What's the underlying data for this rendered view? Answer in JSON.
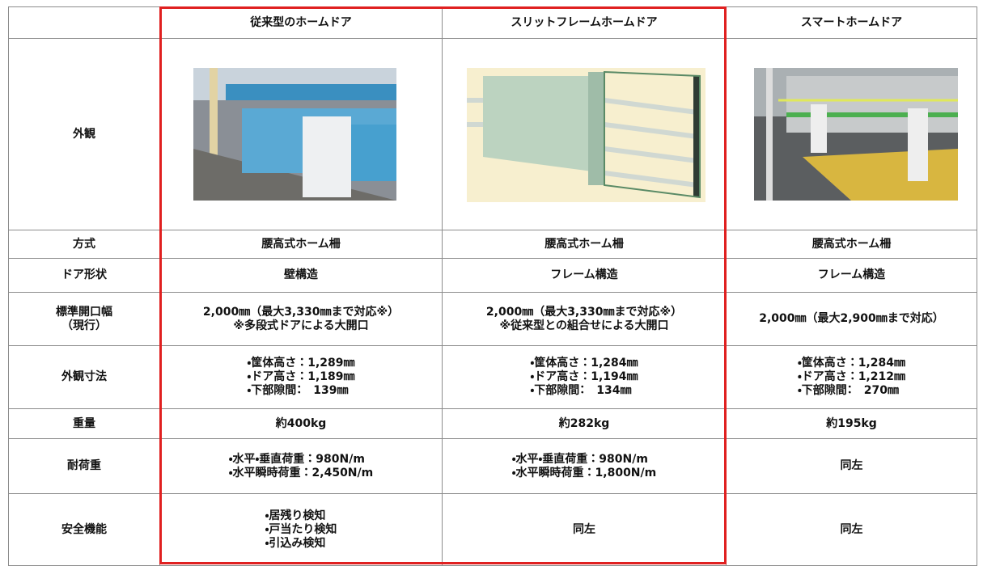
{
  "table": {
    "header": [
      "従来型のホームドア",
      "スリットフレームホームドア",
      "スマートホームドア"
    ],
    "appearance_label": "外観",
    "rows": [
      {
        "label": [
          "方式"
        ],
        "cells": [
          [
            "腰高式ホーム柵"
          ],
          [
            "腰高式ホーム柵"
          ],
          [
            "腰高式ホーム柵"
          ]
        ]
      },
      {
        "label": [
          "ドア形状"
        ],
        "cells": [
          [
            "壁構造"
          ],
          [
            "フレーム構造"
          ],
          [
            "フレーム構造"
          ]
        ]
      },
      {
        "label": [
          "標準開口幅",
          "（現行）"
        ],
        "cells": [
          [
            "2,000㎜（最大3,330㎜まで対応※）",
            "※多段式ドアによる大開口"
          ],
          [
            "2,000㎜（最大3,330㎜まで対応※）",
            "※従来型との組合せによる大開口"
          ],
          [
            "2,000㎜（最大2,900㎜まで対応）"
          ]
        ]
      },
      {
        "label": [
          "外観寸法"
        ],
        "cells": [
          [
            "・筐体高さ：1,289㎜",
            "・ドア高さ：1,189㎜",
            "・下部隙間：　139㎜"
          ],
          [
            "・筐体高さ：1,284㎜",
            "・ドア高さ：1,194㎜",
            "・下部隙間：　134㎜"
          ],
          [
            "・筐体高さ：1,284㎜",
            "・ドア高さ：1,212㎜",
            "・下部隙間：　270㎜"
          ]
        ]
      },
      {
        "label": [
          "重量"
        ],
        "cells": [
          [
            "約400kg"
          ],
          [
            "約282kg"
          ],
          [
            "約195kg"
          ]
        ]
      },
      {
        "label": [
          "耐荷重"
        ],
        "cells": [
          [
            "・水平・垂直荷重：980N/m",
            "・水平瞬時荷重：2,450N/m"
          ],
          [
            "・水平・垂直荷重：980N/m",
            "・水平瞬時荷重：1,800N/m"
          ],
          [
            "同左"
          ]
        ]
      },
      {
        "label": [
          "安全機能"
        ],
        "cells": [
          [
            "・居残り検知",
            "・戸当たり検知",
            "・引込み検知"
          ],
          [
            "同左"
          ],
          [
            "同左"
          ]
        ]
      }
    ]
  }
}
